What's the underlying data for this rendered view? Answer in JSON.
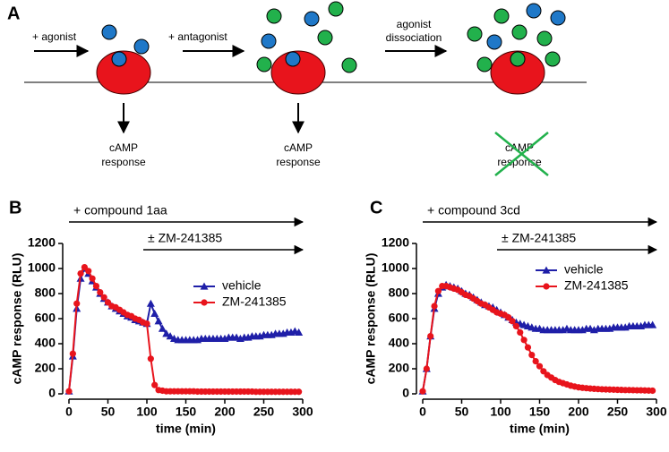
{
  "panel_a": {
    "label": "A",
    "steps": [
      [
        "+ agonist"
      ],
      [
        "+ antagonist"
      ],
      [
        "agonist",
        "dissociation"
      ]
    ],
    "responses": [
      [
        "cAMP",
        "response"
      ],
      [
        "cAMP",
        "response"
      ],
      [
        "cAMP",
        "response"
      ]
    ]
  },
  "chart_data": [
    {
      "type": "line",
      "panel_label": "B",
      "x_label": "time  (min)",
      "y_label": "cAMP response (RLU)",
      "annotations": [
        "+ compound 1aa",
        "± ZM-241385"
      ],
      "legend": "right",
      "x": [
        0,
        5,
        10,
        15,
        20,
        25,
        30,
        35,
        40,
        45,
        50,
        55,
        60,
        65,
        70,
        75,
        80,
        85,
        90,
        95,
        100,
        105,
        110,
        115,
        120,
        125,
        130,
        135,
        140,
        145,
        150,
        155,
        160,
        165,
        170,
        175,
        180,
        185,
        190,
        195,
        200,
        205,
        210,
        215,
        220,
        225,
        230,
        235,
        240,
        245,
        250,
        255,
        260,
        265,
        270,
        275,
        280,
        285,
        290,
        295
      ],
      "series": [
        {
          "name": "vehicle",
          "color": "#1f1fa8",
          "marker": "triangle",
          "values": [
            20,
            300,
            680,
            920,
            1000,
            960,
            900,
            850,
            800,
            760,
            730,
            700,
            680,
            660,
            640,
            620,
            610,
            590,
            580,
            570,
            560,
            720,
            640,
            580,
            520,
            480,
            460,
            440,
            430,
            430,
            430,
            430,
            430,
            430,
            440,
            440,
            440,
            440,
            440,
            440,
            440,
            450,
            450,
            450,
            440,
            450,
            450,
            460,
            460,
            460,
            470,
            470,
            470,
            480,
            480,
            480,
            490,
            490,
            500,
            490
          ]
        },
        {
          "name": "ZM-241385",
          "color": "#e8141c",
          "marker": "circle",
          "values": [
            20,
            320,
            720,
            960,
            1010,
            980,
            920,
            860,
            810,
            770,
            730,
            700,
            690,
            670,
            650,
            630,
            620,
            600,
            590,
            570,
            560,
            280,
            70,
            30,
            25,
            20,
            20,
            20,
            20,
            20,
            20,
            20,
            20,
            18,
            18,
            18,
            18,
            18,
            18,
            18,
            18,
            18,
            18,
            18,
            18,
            18,
            18,
            18,
            16,
            16,
            16,
            16,
            16,
            16,
            16,
            16,
            16,
            16,
            16,
            16
          ]
        }
      ],
      "xlim": [
        0,
        300
      ],
      "xticks": [
        0,
        50,
        100,
        150,
        200,
        250,
        300
      ],
      "ylim": [
        0,
        1200
      ],
      "yticks": [
        0,
        200,
        400,
        600,
        800,
        1000,
        1200
      ]
    },
    {
      "type": "line",
      "panel_label": "C",
      "x_label": "time  (min)",
      "y_label": "cAMP response (RLU)",
      "annotations": [
        "+ compound 3cd",
        "± ZM-241385"
      ],
      "legend": "right",
      "x": [
        0,
        5,
        10,
        15,
        20,
        25,
        30,
        35,
        40,
        45,
        50,
        55,
        60,
        65,
        70,
        75,
        80,
        85,
        90,
        95,
        100,
        105,
        110,
        115,
        120,
        125,
        130,
        135,
        140,
        145,
        150,
        155,
        160,
        165,
        170,
        175,
        180,
        185,
        190,
        195,
        200,
        205,
        210,
        215,
        220,
        225,
        230,
        235,
        240,
        245,
        250,
        255,
        260,
        265,
        270,
        275,
        280,
        285,
        290,
        295
      ],
      "series": [
        {
          "name": "vehicle",
          "color": "#1f1fa8",
          "marker": "triangle",
          "values": [
            20,
            200,
            460,
            680,
            800,
            850,
            870,
            860,
            850,
            840,
            820,
            800,
            790,
            770,
            750,
            730,
            710,
            700,
            690,
            670,
            650,
            630,
            610,
            590,
            570,
            560,
            550,
            540,
            530,
            520,
            520,
            510,
            510,
            510,
            510,
            510,
            510,
            520,
            510,
            510,
            510,
            510,
            520,
            520,
            510,
            520,
            520,
            520,
            520,
            530,
            530,
            530,
            530,
            540,
            540,
            540,
            540,
            550,
            550,
            550
          ]
        },
        {
          "name": "ZM-241385",
          "color": "#e8141c",
          "marker": "circle",
          "values": [
            20,
            200,
            460,
            700,
            820,
            860,
            860,
            850,
            840,
            830,
            810,
            790,
            780,
            760,
            740,
            720,
            710,
            690,
            670,
            650,
            640,
            630,
            610,
            580,
            540,
            490,
            430,
            370,
            310,
            260,
            220,
            180,
            150,
            130,
            110,
            95,
            85,
            75,
            65,
            58,
            52,
            48,
            45,
            42,
            40,
            38,
            36,
            35,
            34,
            33,
            32,
            31,
            30,
            30,
            29,
            28,
            28,
            27,
            26,
            25
          ]
        }
      ],
      "xlim": [
        0,
        300
      ],
      "xticks": [
        0,
        50,
        100,
        150,
        200,
        250,
        300
      ],
      "ylim": [
        0,
        1200
      ],
      "yticks": [
        0,
        200,
        400,
        600,
        800,
        1000,
        1200
      ]
    }
  ]
}
